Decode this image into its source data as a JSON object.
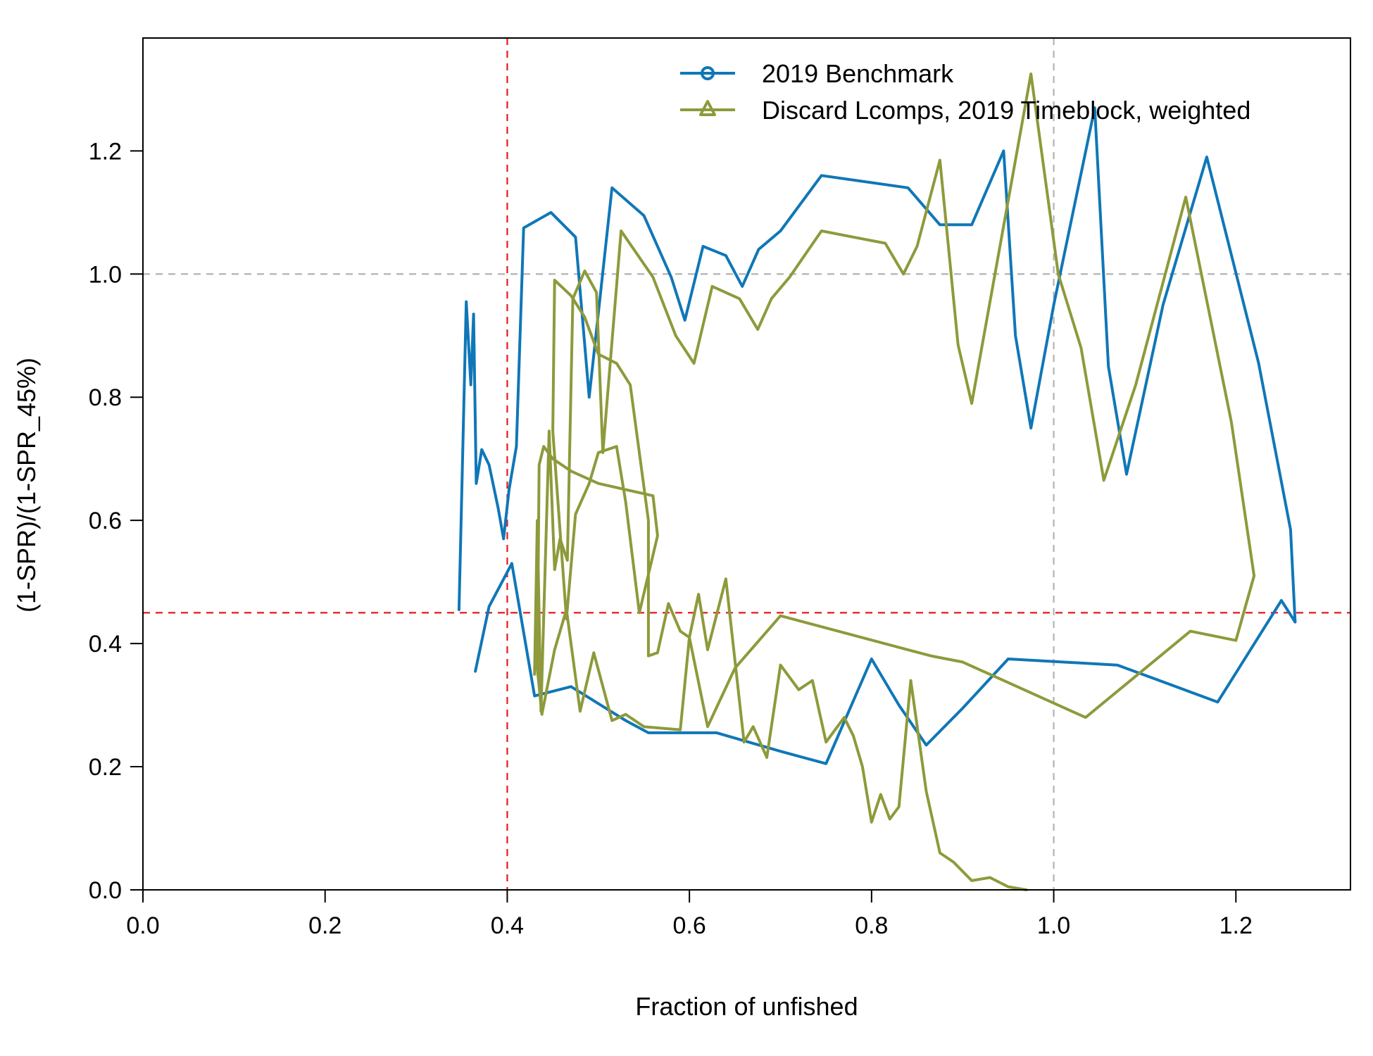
{
  "chart_data": {
    "type": "line",
    "title": "",
    "xlabel": "Fraction of unfished",
    "ylabel": "(1-SPR)/(1-SPR_45%)",
    "xlim": [
      0,
      1.3258
    ],
    "ylim": [
      0,
      1.3833
    ],
    "xticks": [
      "0.0",
      "0.2",
      "0.4",
      "0.6",
      "0.8",
      "1.0",
      "1.2"
    ],
    "xtick_values": [
      0,
      0.2,
      0.4,
      0.6,
      0.8,
      1.0,
      1.2
    ],
    "yticks": [
      "0.0",
      "0.2",
      "0.4",
      "0.6",
      "0.8",
      "1.0",
      "1.2"
    ],
    "ytick_values": [
      0,
      0.2,
      0.4,
      0.6,
      0.8,
      1.0,
      1.2
    ],
    "grid": false,
    "legend_position": "top-right",
    "reference_lines": [
      {
        "orientation": "vertical",
        "value": 0.4,
        "color": "#e41a1c",
        "style": "dashed"
      },
      {
        "orientation": "horizontal",
        "value": 0.45,
        "color": "#e41a1c",
        "style": "dashed"
      },
      {
        "orientation": "vertical",
        "value": 1.0,
        "color": "#b3b3b3",
        "style": "dashed"
      },
      {
        "orientation": "horizontal",
        "value": 1.0,
        "color": "#b3b3b3",
        "style": "dashed"
      }
    ],
    "series": [
      {
        "name": "2019 Benchmark",
        "color": "#0f77b7",
        "marker": "circle",
        "points": [
          [
            0.347,
            0.455
          ],
          [
            0.349,
            0.58
          ],
          [
            0.352,
            0.62
          ],
          [
            0.355,
            0.68
          ],
          [
            0.356,
            0.95
          ],
          [
            0.36,
            0.82
          ],
          [
            0.363,
            0.93
          ],
          [
            0.366,
            0.66
          ],
          [
            0.37,
            0.74
          ],
          [
            0.373,
            0.68
          ],
          [
            0.377,
            0.712
          ],
          [
            0.382,
            0.69
          ],
          [
            0.39,
            0.62
          ],
          [
            0.396,
            0.57
          ],
          [
            0.402,
            0.65
          ],
          [
            0.41,
            0.72
          ],
          [
            0.417,
            0.85
          ],
          [
            0.42,
            0.84
          ],
          [
            0.425,
            0.9
          ],
          [
            0.43,
            0.862
          ],
          [
            0.44,
            0.86
          ],
          [
            0.45,
            0.84
          ],
          [
            0.46,
            0.79
          ],
          [
            0.467,
            0.72
          ],
          [
            0.47,
            0.64
          ],
          [
            0.475,
            0.5
          ],
          [
            0.483,
            0.48
          ],
          [
            0.493,
            0.485
          ],
          [
            0.505,
            0.56
          ],
          [
            0.513,
            0.575
          ],
          [
            0.525,
            0.53
          ],
          [
            0.535,
            0.52
          ],
          [
            0.545,
            0.52
          ],
          [
            0.553,
            0.48
          ],
          [
            0.562,
            0.5
          ],
          [
            0.57,
            0.55
          ],
          [
            0.578,
            0.61
          ],
          [
            0.588,
            0.54
          ],
          [
            0.593,
            0.49
          ],
          [
            0.598,
            0.35
          ],
          [
            0.61,
            0.3
          ],
          [
            0.617,
            0.31
          ],
          [
            0.623,
            0.3
          ],
          [
            0.633,
            0.27
          ],
          [
            0.64,
            0.3
          ],
          [
            0.648,
            0.35
          ],
          [
            0.655,
            0.44
          ],
          [
            0.668,
            0.41
          ],
          [
            0.685,
            0.36
          ],
          [
            0.7,
            0.41
          ],
          [
            0.712,
            0.29
          ],
          [
            0.725,
            0.335
          ],
          [
            0.737,
            0.3
          ],
          [
            0.75,
            0.24
          ],
          [
            0.765,
            0.135
          ],
          [
            0.775,
            0.185
          ],
          [
            0.785,
            0.14
          ],
          [
            0.797,
            0.16
          ],
          [
            0.805,
            0.3
          ],
          [
            0.815,
            0.4
          ],
          [
            0.825,
            0.3
          ],
          [
            0.838,
            0.2
          ],
          [
            0.85,
            0.075
          ],
          [
            0.868,
            0.06
          ],
          [
            0.88,
            0.04
          ],
          [
            0.89,
            0.02
          ],
          [
            0.9,
            0.015
          ],
          [
            0.91,
            0.025
          ],
          [
            0.925,
            0.02
          ],
          [
            0.945,
            0.005
          ],
          [
            0.96,
            0.0
          ]
        ],
        "segments": [
          [
            [
              0.347,
              0.455
            ],
            [
              0.349,
              0.58
            ],
            [
              0.355,
              0.955
            ],
            [
              0.36,
              0.82
            ],
            [
              0.363,
              0.935
            ],
            [
              0.366,
              0.66
            ],
            [
              0.372,
              0.715
            ],
            [
              0.38,
              0.69
            ],
            [
              0.39,
              0.62
            ],
            [
              0.396,
              0.57
            ],
            [
              0.402,
              0.65
            ],
            [
              0.41,
              0.72
            ],
            [
              0.418,
              1.075
            ],
            [
              0.448,
              1.1
            ],
            [
              0.475,
              1.06
            ],
            [
              0.49,
              0.8
            ],
            [
              0.515,
              1.14
            ],
            [
              0.55,
              1.095
            ],
            [
              0.58,
              0.995
            ],
            [
              0.595,
              0.925
            ],
            [
              0.615,
              1.045
            ],
            [
              0.64,
              1.03
            ],
            [
              0.658,
              0.98
            ],
            [
              0.676,
              1.04
            ],
            [
              0.7,
              1.07
            ],
            [
              0.745,
              1.16
            ],
            [
              0.84,
              1.14
            ],
            [
              0.875,
              1.08
            ],
            [
              0.91,
              1.08
            ],
            [
              0.945,
              1.2
            ],
            [
              0.958,
              0.9
            ],
            [
              0.975,
              0.75
            ],
            [
              1.0,
              0.95
            ],
            [
              1.045,
              1.27
            ],
            [
              1.06,
              0.85
            ],
            [
              1.08,
              0.675
            ],
            [
              1.12,
              0.95
            ],
            [
              1.168,
              1.19
            ],
            [
              1.225,
              0.855
            ],
            [
              1.26,
              0.585
            ],
            [
              1.265,
              0.435
            ]
          ],
          [
            [
              0.365,
              0.355
            ],
            [
              0.38,
              0.46
            ],
            [
              0.405,
              0.53
            ],
            [
              0.43,
              0.315
            ],
            [
              0.47,
              0.33
            ],
            [
              0.53,
              0.275
            ],
            [
              0.555,
              0.255
            ],
            [
              0.63,
              0.255
            ],
            [
              0.7,
              0.225
            ],
            [
              0.75,
              0.205
            ],
            [
              0.8,
              0.375
            ],
            [
              0.83,
              0.3
            ],
            [
              0.86,
              0.235
            ],
            [
              0.9,
              0.295
            ],
            [
              0.95,
              0.375
            ],
            [
              1.07,
              0.365
            ],
            [
              1.18,
              0.305
            ],
            [
              1.25,
              0.47
            ],
            [
              1.265,
              0.435
            ]
          ]
        ]
      },
      {
        "name": "Discard Lcomps, 2019 Timeblock, weighted",
        "color": "#8e9a3b",
        "marker": "triangle",
        "segments": [
          [
            [
              0.43,
              0.35
            ],
            [
              0.433,
              0.6
            ],
            [
              0.437,
              0.29
            ],
            [
              0.446,
              0.745
            ],
            [
              0.452,
              0.52
            ],
            [
              0.458,
              0.57
            ],
            [
              0.466,
              0.535
            ],
            [
              0.472,
              0.96
            ],
            [
              0.485,
              1.005
            ],
            [
              0.498,
              0.97
            ],
            [
              0.505,
              0.71
            ],
            [
              0.525,
              1.07
            ],
            [
              0.56,
              0.995
            ],
            [
              0.585,
              0.9
            ],
            [
              0.605,
              0.855
            ],
            [
              0.625,
              0.98
            ],
            [
              0.655,
              0.96
            ],
            [
              0.675,
              0.91
            ],
            [
              0.69,
              0.96
            ],
            [
              0.71,
              0.995
            ],
            [
              0.745,
              1.07
            ],
            [
              0.78,
              1.06
            ],
            [
              0.815,
              1.05
            ],
            [
              0.835,
              1.0
            ],
            [
              0.85,
              1.045
            ],
            [
              0.875,
              1.185
            ],
            [
              0.895,
              0.885
            ],
            [
              0.91,
              0.79
            ],
            [
              0.975,
              1.325
            ],
            [
              1.005,
              1.0
            ],
            [
              1.03,
              0.88
            ],
            [
              1.055,
              0.665
            ],
            [
              1.09,
              0.82
            ],
            [
              1.145,
              1.125
            ],
            [
              1.195,
              0.76
            ],
            [
              1.22,
              0.51
            ],
            [
              1.2,
              0.405
            ],
            [
              1.15,
              0.42
            ],
            [
              1.035,
              0.28
            ],
            [
              0.9,
              0.37
            ],
            [
              0.865,
              0.38
            ],
            [
              0.7,
              0.445
            ],
            [
              0.65,
              0.36
            ],
            [
              0.62,
              0.265
            ],
            [
              0.6,
              0.41
            ],
            [
              0.59,
              0.26
            ],
            [
              0.55,
              0.265
            ],
            [
              0.53,
              0.285
            ],
            [
              0.515,
              0.275
            ],
            [
              0.495,
              0.385
            ],
            [
              0.48,
              0.29
            ],
            [
              0.465,
              0.455
            ],
            [
              0.452,
              0.39
            ],
            [
              0.438,
              0.285
            ],
            [
              0.433,
              0.36
            ],
            [
              0.435,
              0.69
            ],
            [
              0.44,
              0.72
            ],
            [
              0.45,
              0.7
            ],
            [
              0.47,
              0.68
            ],
            [
              0.5,
              0.66
            ],
            [
              0.56,
              0.64
            ],
            [
              0.565,
              0.575
            ],
            [
              0.545,
              0.45
            ],
            [
              0.53,
              0.63
            ],
            [
              0.52,
              0.72
            ],
            [
              0.5,
              0.71
            ],
            [
              0.49,
              0.66
            ],
            [
              0.475,
              0.61
            ],
            [
              0.465,
              0.44
            ],
            [
              0.45,
              0.745
            ],
            [
              0.452,
              0.99
            ],
            [
              0.47,
              0.965
            ],
            [
              0.485,
              0.93
            ],
            [
              0.5,
              0.87
            ],
            [
              0.52,
              0.855
            ],
            [
              0.535,
              0.82
            ],
            [
              0.555,
              0.6
            ],
            [
              0.555,
              0.38
            ],
            [
              0.565,
              0.385
            ],
            [
              0.577,
              0.465
            ],
            [
              0.59,
              0.42
            ],
            [
              0.6,
              0.41
            ],
            [
              0.61,
              0.48
            ],
            [
              0.62,
              0.39
            ],
            [
              0.64,
              0.505
            ],
            [
              0.66,
              0.24
            ],
            [
              0.67,
              0.265
            ],
            [
              0.685,
              0.215
            ],
            [
              0.7,
              0.365
            ],
            [
              0.72,
              0.325
            ],
            [
              0.735,
              0.34
            ],
            [
              0.75,
              0.24
            ],
            [
              0.77,
              0.28
            ],
            [
              0.78,
              0.25
            ],
            [
              0.79,
              0.2
            ],
            [
              0.8,
              0.11
            ],
            [
              0.81,
              0.155
            ],
            [
              0.82,
              0.115
            ],
            [
              0.83,
              0.135
            ],
            [
              0.843,
              0.34
            ],
            [
              0.86,
              0.16
            ],
            [
              0.875,
              0.06
            ],
            [
              0.89,
              0.045
            ],
            [
              0.91,
              0.015
            ],
            [
              0.93,
              0.02
            ],
            [
              0.95,
              0.005
            ],
            [
              0.97,
              0.0
            ]
          ]
        ]
      }
    ]
  }
}
